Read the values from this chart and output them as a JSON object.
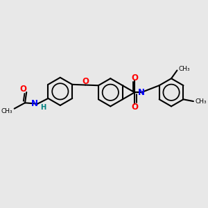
{
  "bg_color": "#e8e8e8",
  "bond_color": "#000000",
  "N_color": "#0000ff",
  "O_color": "#ff0000",
  "H_color": "#008080",
  "figsize": [
    3.0,
    3.0
  ],
  "dpi": 100,
  "xlim": [
    0,
    10
  ],
  "ylim": [
    0,
    10
  ]
}
